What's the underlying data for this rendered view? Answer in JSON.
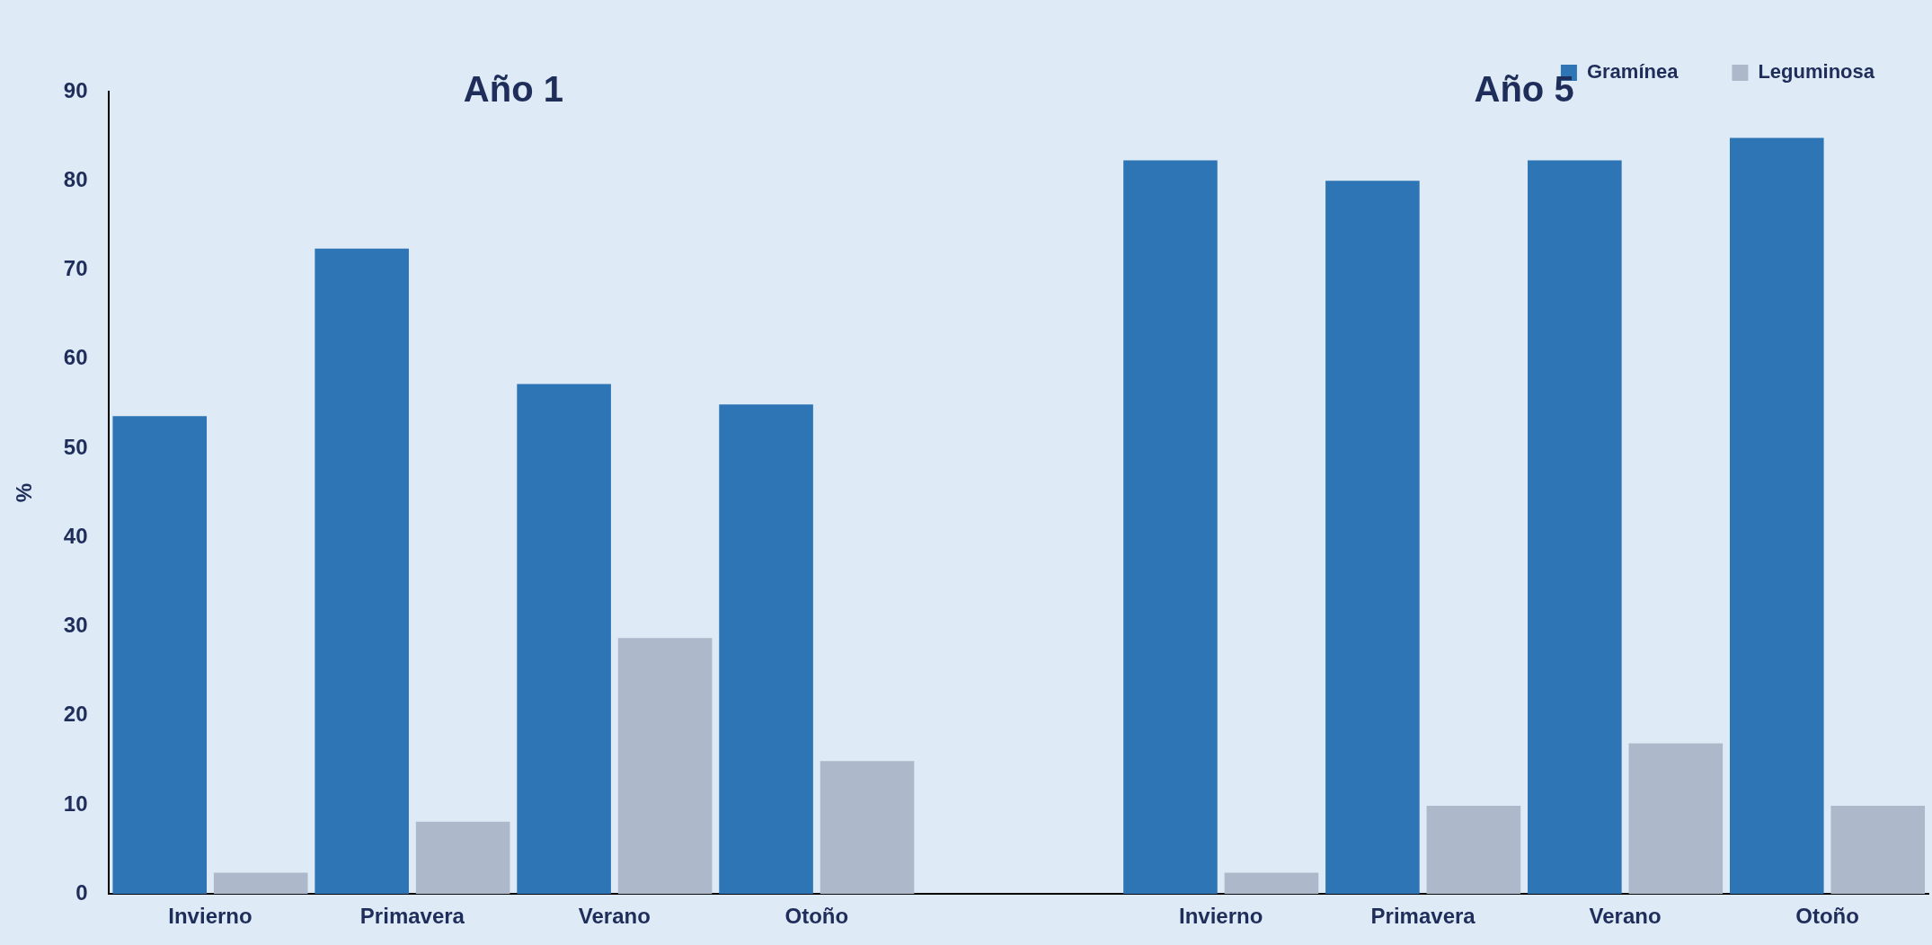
{
  "chart_data": {
    "type": "bar",
    "ylabel": "%",
    "annotations": [
      "Año 1",
      "Año 5"
    ],
    "categories": [
      "Invierno",
      "Primavera",
      "Verano",
      "Otoño",
      null,
      "Invierno",
      "Primavera",
      "Verano",
      "Otoño"
    ],
    "series": [
      {
        "name": "Gramínea",
        "color": "#2e75b6",
        "values": [
          53.6,
          72.4,
          57.2,
          54.9,
          null,
          82.3,
          80,
          82.3,
          84.8
        ]
      },
      {
        "name": "Leguminosa",
        "color": "#adb9ca",
        "values": [
          2.4,
          8.1,
          28.7,
          14.9,
          null,
          2.4,
          9.9,
          16.9,
          9.9
        ]
      }
    ],
    "ylim": [
      0,
      90
    ],
    "yticks": [
      0,
      10,
      20,
      30,
      40,
      50,
      60,
      70,
      80,
      90
    ],
    "grid": false,
    "legend": "top right"
  }
}
